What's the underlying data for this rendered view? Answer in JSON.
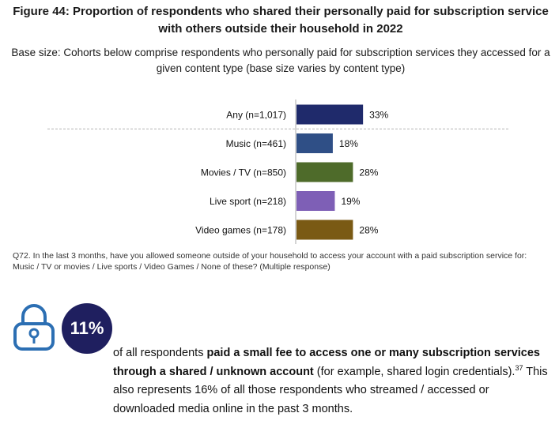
{
  "header": {
    "title": "Figure 44: Proportion of respondents who shared their personally paid for subscription service with others outside their household in 2022",
    "base_size": "Base size: Cohorts below comprise respondents who personally paid for subscription services they accessed for a given content type (base size varies by content type)"
  },
  "chart_data": {
    "type": "bar",
    "orientation": "horizontal",
    "categories": [
      "Any (n=1,017)",
      "Music (n=461)",
      "Movies / TV (n=850)",
      "Live sport (n=218)",
      "Video games (n=178)"
    ],
    "values": [
      33,
      18,
      28,
      19,
      28
    ],
    "value_labels": [
      "33%",
      "18%",
      "28%",
      "19%",
      "28%"
    ],
    "colors": [
      "#1f2a6b",
      "#2f4f86",
      "#4e6b2a",
      "#7e5fb6",
      "#7a5a14"
    ],
    "xlim": [
      0,
      100
    ],
    "grid": false,
    "legend": "none",
    "separator_after_first": true
  },
  "note": "Q72. In the last 3 months, have you allowed someone outside of your household to access your account with a paid subscription service for: Music / TV or movies / Live sports / Video Games / None of these? (Multiple response)",
  "callout": {
    "stat": "11%",
    "text_prefix": "of all respondents ",
    "text_bold": "paid a small fee to access one or many subscription services through a shared / unknown account",
    "text_after": " (for example, shared login credentials).",
    "footnote": "37",
    "text_second": " This also represents 16% of all those respondents who streamed / accessed or downloaded media online in the past 3 months.",
    "icon": "padlock-icon",
    "accent": "#1f1f5f",
    "icon_color": "#2c6fb3"
  }
}
